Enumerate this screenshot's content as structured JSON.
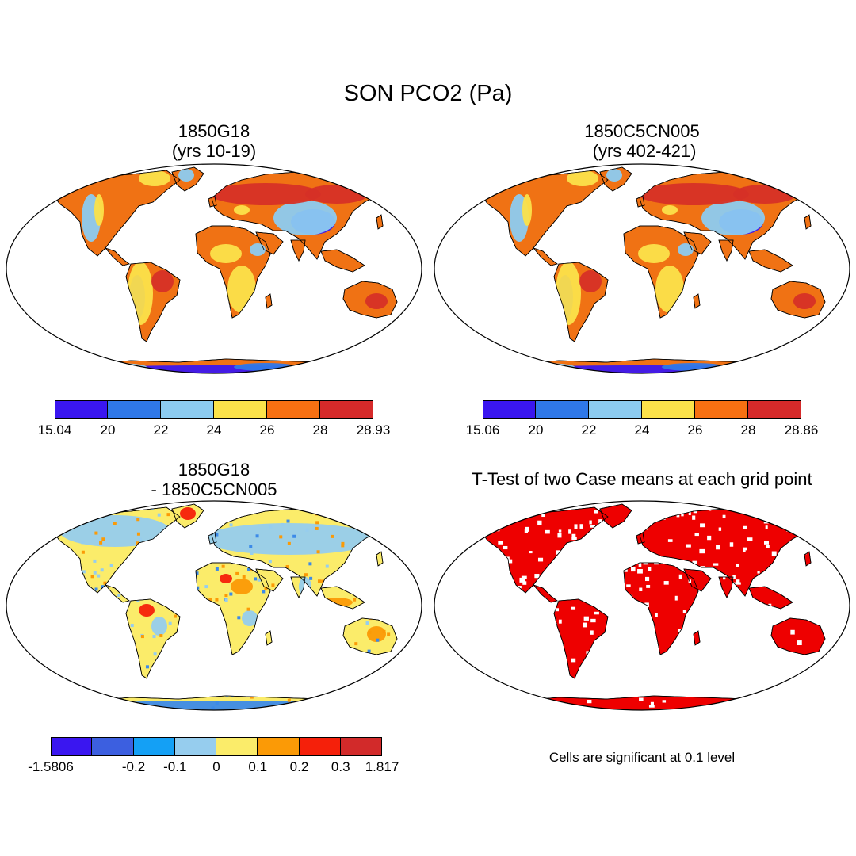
{
  "figure": {
    "title": "SON PCO2 (Pa)"
  },
  "panels": [
    {
      "id": "case1",
      "title_lines": [
        "1850G18",
        "(yrs 10-19)"
      ],
      "colorbar": {
        "colors": [
          "#3a16f0",
          "#2f78e8",
          "#8ccbf0",
          "#fbe24a",
          "#f77012",
          "#d62a2a"
        ],
        "labels": [
          "15.04",
          "20",
          "22",
          "24",
          "26",
          "28",
          "28.93"
        ]
      }
    },
    {
      "id": "case2",
      "title_lines": [
        "1850C5CN005",
        " (yrs 402-421)"
      ],
      "colorbar": {
        "colors": [
          "#3a16f0",
          "#2f78e8",
          "#8ccbf0",
          "#fbe24a",
          "#f77012",
          "#d62a2a"
        ],
        "labels": [
          "15.06",
          "20",
          "22",
          "24",
          "26",
          "28",
          "28.86"
        ]
      }
    },
    {
      "id": "difference",
      "title_lines": [
        "1850G18",
        "- 1850C5CN005"
      ],
      "colorbar": {
        "colors": [
          "#3a16f0",
          "#3c5fe0",
          "#14a0f5",
          "#96cdee",
          "#fbec6a",
          "#fb9a06",
          "#f5200a",
          "#d22a2a"
        ],
        "labels": [
          "-1.5806",
          "",
          "-0.2",
          "-0.1",
          "0",
          "0.1",
          "0.2",
          "0.3",
          "1.817"
        ]
      }
    },
    {
      "id": "ttest",
      "title_lines": [
        "T-Test of two Case means at each grid point"
      ],
      "note": "Cells are significant at 0.1 level",
      "significant_color": "#ee0000"
    }
  ],
  "map_colors": {
    "case_land": "#f07214",
    "case_hot": "#d63026",
    "case_mid": "#fbe24a",
    "case_cool": "#8ccbf0",
    "case_low": "#3a16f0",
    "case_low2": "#2f78e8",
    "diff_land": "#fbec6a",
    "diff_neg": "#96cdee",
    "diff_neg2": "#3c8ae8",
    "diff_pos": "#fb9a06",
    "diff_pos2": "#f5200a",
    "ttest_land": "#ee0000"
  }
}
